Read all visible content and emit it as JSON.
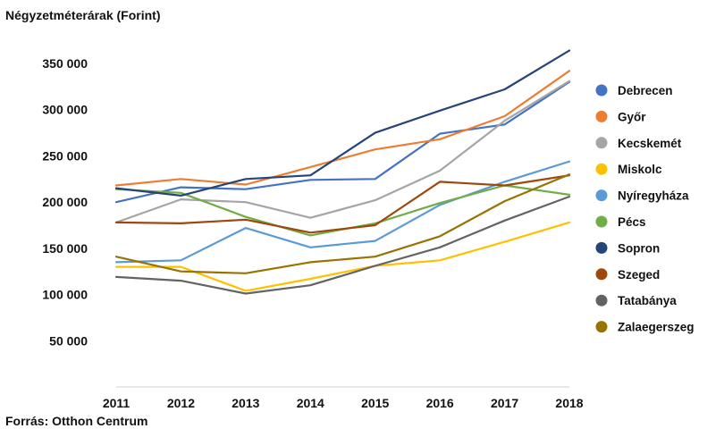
{
  "chart_data": {
    "type": "line",
    "title": "Négyzetméterárak (Forint)",
    "source": "Forrás: Otthon Centrum",
    "xlabel": "",
    "ylabel": "",
    "ylim": [
      0,
      380000
    ],
    "yticks": [
      50000,
      100000,
      150000,
      200000,
      250000,
      300000,
      350000
    ],
    "ytick_labels": [
      "50 000",
      "100 000",
      "150 000",
      "200 000",
      "250 000",
      "300 000",
      "350 000"
    ],
    "categories": [
      "2011",
      "2012",
      "2013",
      "2014",
      "2015",
      "2016",
      "2017",
      "2018"
    ],
    "legend_position": "right",
    "grid": false,
    "series": [
      {
        "name": "Debrecen",
        "color": "#4472C4",
        "values": [
          200000,
          216000,
          214000,
          224000,
          225000,
          274000,
          284000,
          330000
        ]
      },
      {
        "name": "Győr",
        "color": "#ED7D31",
        "values": [
          218000,
          225000,
          219000,
          238000,
          257000,
          268000,
          293000,
          342000
        ]
      },
      {
        "name": "Kecskemét",
        "color": "#A5A5A5",
        "values": [
          178000,
          203000,
          200000,
          183000,
          202000,
          234000,
          288000,
          331000
        ]
      },
      {
        "name": "Miskolc",
        "color": "#FFC000",
        "values": [
          130000,
          130000,
          104000,
          117000,
          131000,
          137000,
          157000,
          178000
        ]
      },
      {
        "name": "Nyíregyháza",
        "color": "#5B9BD5",
        "values": [
          135000,
          137000,
          172000,
          151000,
          158000,
          197000,
          222000,
          244000
        ]
      },
      {
        "name": "Pécs",
        "color": "#70AD47",
        "values": [
          214000,
          210000,
          184000,
          164000,
          177000,
          199000,
          218000,
          208000
        ]
      },
      {
        "name": "Sopron",
        "color": "#264478",
        "values": [
          215000,
          207000,
          225000,
          229000,
          275000,
          299000,
          322000,
          364000
        ]
      },
      {
        "name": "Szeged",
        "color": "#9E480E",
        "values": [
          178000,
          177000,
          181000,
          167000,
          175000,
          222000,
          218000,
          229000
        ]
      },
      {
        "name": "Tatabánya",
        "color": "#636363",
        "values": [
          119000,
          115000,
          101000,
          110000,
          131000,
          151000,
          180000,
          206000
        ]
      },
      {
        "name": "Zalaegerszeg",
        "color": "#997300",
        "values": [
          141000,
          125000,
          123000,
          135000,
          141000,
          163000,
          201000,
          230000
        ]
      }
    ]
  }
}
